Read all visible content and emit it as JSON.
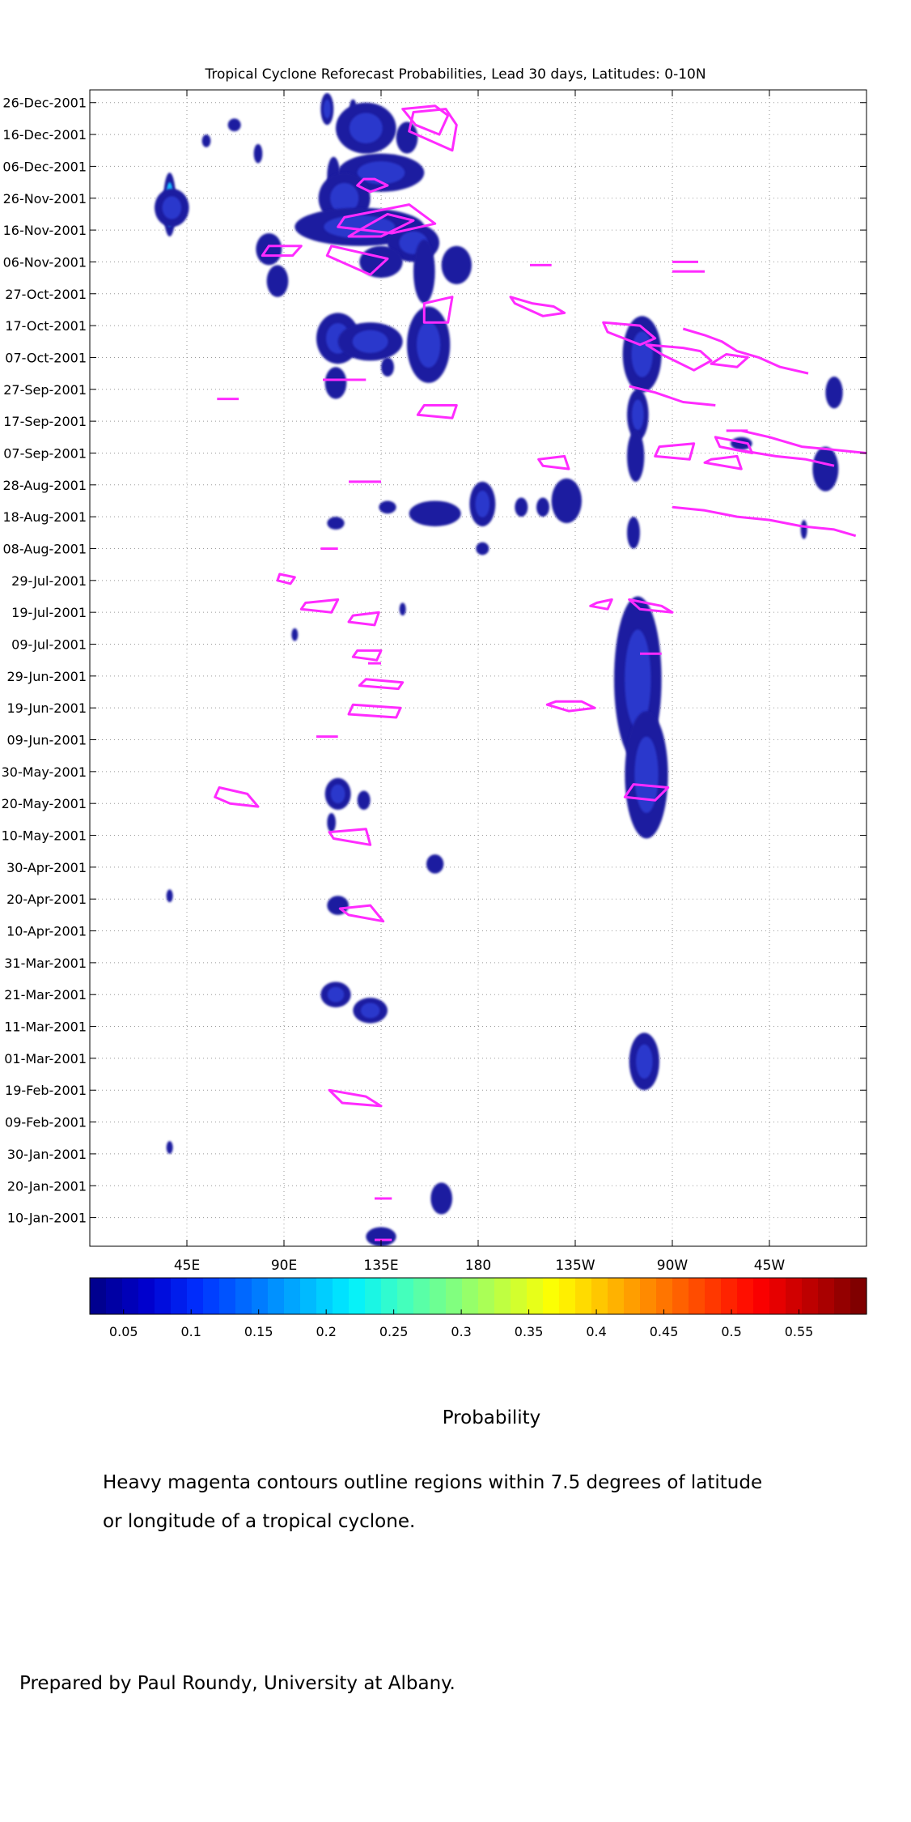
{
  "colors": {
    "contour": "#ff2bff",
    "blob_outer": "#1c1ca0",
    "blob_inner": "#2d3fd8",
    "grid": "#9a9a9a",
    "colorbar": [
      "#00008f",
      "#0000d0",
      "#0030ff",
      "#0070ff",
      "#00b0ff",
      "#00f0ff",
      "#40ffc0",
      "#80ff80",
      "#c0ff40",
      "#ffff00",
      "#ffc000",
      "#ff8000",
      "#ff4000",
      "#ff0000",
      "#c00000",
      "#800000"
    ]
  },
  "chart_data": {
    "type": "heatmap",
    "title": "Tropical Cyclone Reforecast Probabilities, Lead 30 days, Latitudes: 0-10N",
    "x_ticks": [
      "45E",
      "90E",
      "135E",
      "180",
      "135W",
      "90W",
      "45W"
    ],
    "x_tick_values": [
      45,
      90,
      135,
      180,
      225,
      270,
      315
    ],
    "x_range": [
      0,
      360
    ],
    "y_ticks": [
      "26-Dec-2001",
      "16-Dec-2001",
      "06-Dec-2001",
      "26-Nov-2001",
      "16-Nov-2001",
      "06-Nov-2001",
      "27-Oct-2001",
      "17-Oct-2001",
      "07-Oct-2001",
      "27-Sep-2001",
      "17-Sep-2001",
      "07-Sep-2001",
      "28-Aug-2001",
      "18-Aug-2001",
      "08-Aug-2001",
      "29-Jul-2001",
      "19-Jul-2001",
      "09-Jul-2001",
      "29-Jun-2001",
      "19-Jun-2001",
      "09-Jun-2001",
      "30-May-2001",
      "20-May-2001",
      "10-May-2001",
      "30-Apr-2001",
      "20-Apr-2001",
      "10-Apr-2001",
      "31-Mar-2001",
      "21-Mar-2001",
      "11-Mar-2001",
      "01-Mar-2001",
      "19-Feb-2001",
      "09-Feb-2001",
      "30-Jan-2001",
      "20-Jan-2001",
      "10-Jan-2001"
    ],
    "y_tick_values": [
      359,
      349,
      339,
      329,
      319,
      309,
      299,
      289,
      279,
      269,
      259,
      249,
      239,
      229,
      219,
      209,
      199,
      189,
      179,
      169,
      159,
      149,
      139,
      129,
      119,
      109,
      99,
      89,
      79,
      69,
      59,
      49,
      39,
      29,
      19,
      9
    ],
    "y_range": [
      0,
      363
    ],
    "grid": true,
    "colorbar": {
      "label": "Probability",
      "ticks": [
        "0.05",
        "0.1",
        "0.15",
        "0.2",
        "0.25",
        "0.3",
        "0.35",
        "0.4",
        "0.45",
        "0.5",
        "0.55"
      ],
      "tick_values": [
        0.05,
        0.1,
        0.15,
        0.2,
        0.25,
        0.3,
        0.35,
        0.4,
        0.45,
        0.5,
        0.55
      ],
      "range": [
        0.025,
        0.6
      ]
    },
    "probability_regions": [
      {
        "lon": 37,
        "day": 327,
        "dlon": 3,
        "dday": 10,
        "p": 0.3
      },
      {
        "lon": 38,
        "day": 326,
        "dlon": 8,
        "dday": 6,
        "p": 0.07
      },
      {
        "lon": 54,
        "day": 347,
        "dlon": 2,
        "dday": 2,
        "p": 0.05
      },
      {
        "lon": 67,
        "day": 352,
        "dlon": 3,
        "dday": 2,
        "p": 0.05
      },
      {
        "lon": 83,
        "day": 313,
        "dlon": 6,
        "dday": 5,
        "p": 0.05
      },
      {
        "lon": 87,
        "day": 303,
        "dlon": 5,
        "dday": 5,
        "p": 0.05
      },
      {
        "lon": 78,
        "day": 343,
        "dlon": 2,
        "dday": 3,
        "p": 0.05
      },
      {
        "lon": 110,
        "day": 357,
        "dlon": 3,
        "dday": 5,
        "p": 0.06
      },
      {
        "lon": 122,
        "day": 358,
        "dlon": 1,
        "dday": 2,
        "p": 0.05
      },
      {
        "lon": 128,
        "day": 351,
        "dlon": 14,
        "dday": 8,
        "p": 0.07
      },
      {
        "lon": 147,
        "day": 348,
        "dlon": 5,
        "dday": 5,
        "p": 0.05
      },
      {
        "lon": 113,
        "day": 336,
        "dlon": 3,
        "dday": 6,
        "p": 0.05
      },
      {
        "lon": 135,
        "day": 337,
        "dlon": 20,
        "dday": 6,
        "p": 0.07
      },
      {
        "lon": 118,
        "day": 329,
        "dlon": 12,
        "dday": 8,
        "p": 0.06
      },
      {
        "lon": 125,
        "day": 320,
        "dlon": 30,
        "dday": 6,
        "p": 0.08
      },
      {
        "lon": 150,
        "day": 315,
        "dlon": 12,
        "dday": 6,
        "p": 0.06
      },
      {
        "lon": 135,
        "day": 309,
        "dlon": 10,
        "dday": 5,
        "p": 0.05
      },
      {
        "lon": 155,
        "day": 306,
        "dlon": 5,
        "dday": 10,
        "p": 0.05
      },
      {
        "lon": 170,
        "day": 308,
        "dlon": 7,
        "dday": 6,
        "p": 0.05
      },
      {
        "lon": 115,
        "day": 285,
        "dlon": 10,
        "dday": 8,
        "p": 0.06
      },
      {
        "lon": 130,
        "day": 284,
        "dlon": 15,
        "dday": 6,
        "p": 0.06
      },
      {
        "lon": 157,
        "day": 283,
        "dlon": 10,
        "dday": 12,
        "p": 0.06
      },
      {
        "lon": 114,
        "day": 271,
        "dlon": 5,
        "dday": 5,
        "p": 0.05
      },
      {
        "lon": 138,
        "day": 276,
        "dlon": 3,
        "dday": 3,
        "p": 0.05
      },
      {
        "lon": 160,
        "day": 230,
        "dlon": 12,
        "dday": 4,
        "p": 0.05
      },
      {
        "lon": 138,
        "day": 232,
        "dlon": 4,
        "dday": 2,
        "p": 0.05
      },
      {
        "lon": 114,
        "day": 227,
        "dlon": 4,
        "dday": 2,
        "p": 0.05
      },
      {
        "lon": 182,
        "day": 233,
        "dlon": 6,
        "dday": 7,
        "p": 0.06
      },
      {
        "lon": 182,
        "day": 219,
        "dlon": 3,
        "dday": 2,
        "p": 0.05
      },
      {
        "lon": 210,
        "day": 232,
        "dlon": 3,
        "dday": 3,
        "p": 0.05
      },
      {
        "lon": 200,
        "day": 232,
        "dlon": 3,
        "dday": 3,
        "p": 0.05
      },
      {
        "lon": 221,
        "day": 234,
        "dlon": 7,
        "dday": 7,
        "p": 0.05
      },
      {
        "lon": 256,
        "day": 280,
        "dlon": 9,
        "dday": 12,
        "p": 0.06
      },
      {
        "lon": 254,
        "day": 261,
        "dlon": 5,
        "dday": 8,
        "p": 0.06
      },
      {
        "lon": 253,
        "day": 248,
        "dlon": 4,
        "dday": 8,
        "p": 0.05
      },
      {
        "lon": 252,
        "day": 224,
        "dlon": 3,
        "dday": 5,
        "p": 0.05
      },
      {
        "lon": 254,
        "day": 178,
        "dlon": 11,
        "dday": 26,
        "p": 0.07
      },
      {
        "lon": 258,
        "day": 148,
        "dlon": 10,
        "dday": 20,
        "p": 0.07
      },
      {
        "lon": 257,
        "day": 58,
        "dlon": 7,
        "dday": 9,
        "p": 0.06
      },
      {
        "lon": 302,
        "day": 252,
        "dlon": 5,
        "dday": 2,
        "p": 0.05
      },
      {
        "lon": 345,
        "day": 268,
        "dlon": 4,
        "dday": 5,
        "p": 0.05
      },
      {
        "lon": 341,
        "day": 244,
        "dlon": 6,
        "dday": 7,
        "p": 0.05
      },
      {
        "lon": 331,
        "day": 225,
        "dlon": 1,
        "dday": 3,
        "p": 0.05
      },
      {
        "lon": 37,
        "day": 110,
        "dlon": 1,
        "dday": 2,
        "p": 0.05
      },
      {
        "lon": 37,
        "day": 31,
        "dlon": 1,
        "dday": 2,
        "p": 0.05
      },
      {
        "lon": 95,
        "day": 192,
        "dlon": 1,
        "dday": 2,
        "p": 0.05
      },
      {
        "lon": 145,
        "day": 200,
        "dlon": 1,
        "dday": 2,
        "p": 0.05
      },
      {
        "lon": 115,
        "day": 142,
        "dlon": 6,
        "dday": 5,
        "p": 0.06
      },
      {
        "lon": 127,
        "day": 140,
        "dlon": 3,
        "dday": 3,
        "p": 0.05
      },
      {
        "lon": 112,
        "day": 133,
        "dlon": 2,
        "dday": 3,
        "p": 0.05
      },
      {
        "lon": 160,
        "day": 120,
        "dlon": 4,
        "dday": 3,
        "p": 0.05
      },
      {
        "lon": 115,
        "day": 107,
        "dlon": 5,
        "dday": 3,
        "p": 0.05
      },
      {
        "lon": 114,
        "day": 79,
        "dlon": 7,
        "dday": 4,
        "p": 0.06
      },
      {
        "lon": 130,
        "day": 74,
        "dlon": 8,
        "dday": 4,
        "p": 0.06
      },
      {
        "lon": 163,
        "day": 15,
        "dlon": 5,
        "dday": 5,
        "p": 0.05
      },
      {
        "lon": 135,
        "day": 3,
        "dlon": 7,
        "dday": 3,
        "p": 0.05
      }
    ],
    "cyclone_contours": [
      [
        [
          127,
          335
        ],
        [
          132,
          335
        ],
        [
          138,
          333
        ],
        [
          130,
          331
        ],
        [
          124,
          333
        ]
      ],
      [
        [
          145,
          357
        ],
        [
          160,
          358
        ],
        [
          166,
          355
        ],
        [
          162,
          349
        ],
        [
          151,
          352
        ]
      ],
      [
        [
          150,
          356
        ],
        [
          165,
          357
        ],
        [
          170,
          352
        ],
        [
          168,
          344
        ],
        [
          148,
          350
        ]
      ],
      [
        [
          118,
          323
        ],
        [
          148,
          327
        ],
        [
          160,
          321
        ],
        [
          140,
          318
        ],
        [
          115,
          320
        ]
      ],
      [
        [
          125,
          319
        ],
        [
          138,
          324
        ],
        [
          150,
          322
        ],
        [
          135,
          317
        ],
        [
          120,
          317
        ]
      ],
      [
        [
          112,
          314
        ],
        [
          138,
          310
        ],
        [
          130,
          305
        ],
        [
          110,
          311
        ]
      ],
      [
        [
          83,
          314
        ],
        [
          98,
          314
        ],
        [
          94,
          311
        ],
        [
          80,
          311
        ]
      ],
      [
        [
          155,
          296
        ],
        [
          168,
          298
        ],
        [
          166,
          290
        ],
        [
          155,
          290
        ]
      ],
      [
        [
          195,
          298
        ],
        [
          205,
          296
        ],
        [
          215,
          295
        ],
        [
          220,
          293
        ],
        [
          210,
          292
        ],
        [
          197,
          296
        ]
      ],
      [
        [
          238,
          290
        ],
        [
          255,
          289
        ],
        [
          262,
          285
        ],
        [
          255,
          283
        ],
        [
          240,
          287
        ]
      ],
      [
        [
          258,
          283
        ],
        [
          275,
          282
        ],
        [
          283,
          281
        ],
        [
          288,
          278
        ],
        [
          280,
          275
        ],
        [
          265,
          280
        ]
      ],
      [
        [
          295,
          280
        ],
        [
          305,
          279
        ],
        [
          300,
          276
        ],
        [
          288,
          277
        ]
      ],
      [
        [
          155,
          264
        ],
        [
          170,
          264
        ],
        [
          168,
          260
        ],
        [
          152,
          261
        ]
      ],
      [
        [
          208,
          247
        ],
        [
          220,
          248
        ],
        [
          222,
          244
        ],
        [
          210,
          245
        ]
      ],
      [
        [
          264,
          251
        ],
        [
          280,
          252
        ],
        [
          278,
          247
        ],
        [
          262,
          248
        ]
      ],
      [
        [
          290,
          254
        ],
        [
          305,
          252
        ],
        [
          307,
          249
        ],
        [
          292,
          251
        ]
      ],
      [
        [
          288,
          247
        ],
        [
          300,
          248
        ],
        [
          302,
          244
        ],
        [
          285,
          246
        ]
      ],
      [
        [
          250,
          203
        ],
        [
          265,
          201
        ],
        [
          270,
          199
        ],
        [
          255,
          200
        ]
      ],
      [
        [
          235,
          202
        ],
        [
          242,
          203
        ],
        [
          240,
          200
        ],
        [
          232,
          201
        ]
      ],
      [
        [
          100,
          202
        ],
        [
          115,
          203
        ],
        [
          112,
          199
        ],
        [
          98,
          200
        ]
      ],
      [
        [
          122,
          198
        ],
        [
          134,
          199
        ],
        [
          132,
          195
        ],
        [
          120,
          196
        ]
      ],
      [
        [
          88,
          211
        ],
        [
          95,
          210
        ],
        [
          93,
          208
        ],
        [
          87,
          209
        ]
      ],
      [
        [
          124,
          187
        ],
        [
          135,
          187
        ],
        [
          133,
          184
        ],
        [
          122,
          185
        ]
      ],
      [
        [
          128,
          178
        ],
        [
          145,
          177
        ],
        [
          143,
          175
        ],
        [
          125,
          176
        ]
      ],
      [
        [
          122,
          170
        ],
        [
          144,
          169
        ],
        [
          142,
          166
        ],
        [
          120,
          167
        ]
      ],
      [
        [
          216,
          171
        ],
        [
          228,
          171
        ],
        [
          234,
          169
        ],
        [
          222,
          168
        ],
        [
          212,
          170
        ]
      ],
      [
        [
          252,
          145
        ],
        [
          268,
          144
        ],
        [
          262,
          140
        ],
        [
          248,
          141
        ]
      ],
      [
        [
          60,
          144
        ],
        [
          73,
          142
        ],
        [
          78,
          138
        ],
        [
          65,
          139
        ],
        [
          58,
          141
        ]
      ],
      [
        [
          111,
          130
        ],
        [
          128,
          131
        ],
        [
          130,
          126
        ],
        [
          113,
          128
        ]
      ],
      [
        [
          116,
          106
        ],
        [
          130,
          107
        ],
        [
          136,
          102
        ],
        [
          120,
          104
        ]
      ],
      [
        [
          111,
          49
        ],
        [
          128,
          47
        ],
        [
          135,
          44
        ],
        [
          117,
          45
        ]
      ]
    ],
    "cyclone_segments": [
      [
        [
          204,
          308
        ],
        [
          214,
          308
        ]
      ],
      [
        [
          270,
          309
        ],
        [
          282,
          309
        ]
      ],
      [
        [
          270,
          306
        ],
        [
          285,
          306
        ]
      ],
      [
        [
          59,
          266
        ],
        [
          69,
          266
        ]
      ],
      [
        [
          108,
          272
        ],
        [
          128,
          272
        ]
      ],
      [
        [
          120,
          240
        ],
        [
          135,
          240
        ]
      ],
      [
        [
          107,
          219
        ],
        [
          115,
          219
        ]
      ],
      [
        [
          295,
          256
        ],
        [
          305,
          256
        ]
      ],
      [
        [
          255,
          186
        ],
        [
          265,
          186
        ]
      ],
      [
        [
          105,
          160
        ],
        [
          115,
          160
        ]
      ],
      [
        [
          129,
          183
        ],
        [
          135,
          183
        ]
      ],
      [
        [
          132,
          15
        ],
        [
          140,
          15
        ]
      ],
      [
        [
          132,
          2
        ],
        [
          140,
          2
        ]
      ]
    ],
    "cyclone_tracks": [
      [
        [
          275,
          288
        ],
        [
          285,
          286
        ],
        [
          293,
          284
        ],
        [
          300,
          281
        ],
        [
          310,
          279
        ],
        [
          320,
          276
        ],
        [
          333,
          274
        ]
      ],
      [
        [
          270,
          232
        ],
        [
          285,
          231
        ],
        [
          300,
          229
        ],
        [
          315,
          228
        ],
        [
          330,
          226
        ],
        [
          345,
          225
        ],
        [
          355,
          223
        ]
      ],
      [
        [
          250,
          270
        ],
        [
          262,
          268
        ],
        [
          275,
          265
        ],
        [
          290,
          264
        ]
      ],
      [
        [
          302,
          256
        ],
        [
          315,
          254
        ],
        [
          330,
          251
        ],
        [
          345,
          250
        ],
        [
          360,
          249
        ]
      ],
      [
        [
          300,
          250
        ],
        [
          318,
          248
        ],
        [
          332,
          247
        ],
        [
          345,
          245
        ]
      ]
    ]
  },
  "notes": {
    "line1": "Heavy magenta contours outline regions within 7.5 degrees of latitude",
    "line2": "or longitude of a tropical cyclone.",
    "credit": "Prepared by Paul Roundy, University at Albany."
  }
}
